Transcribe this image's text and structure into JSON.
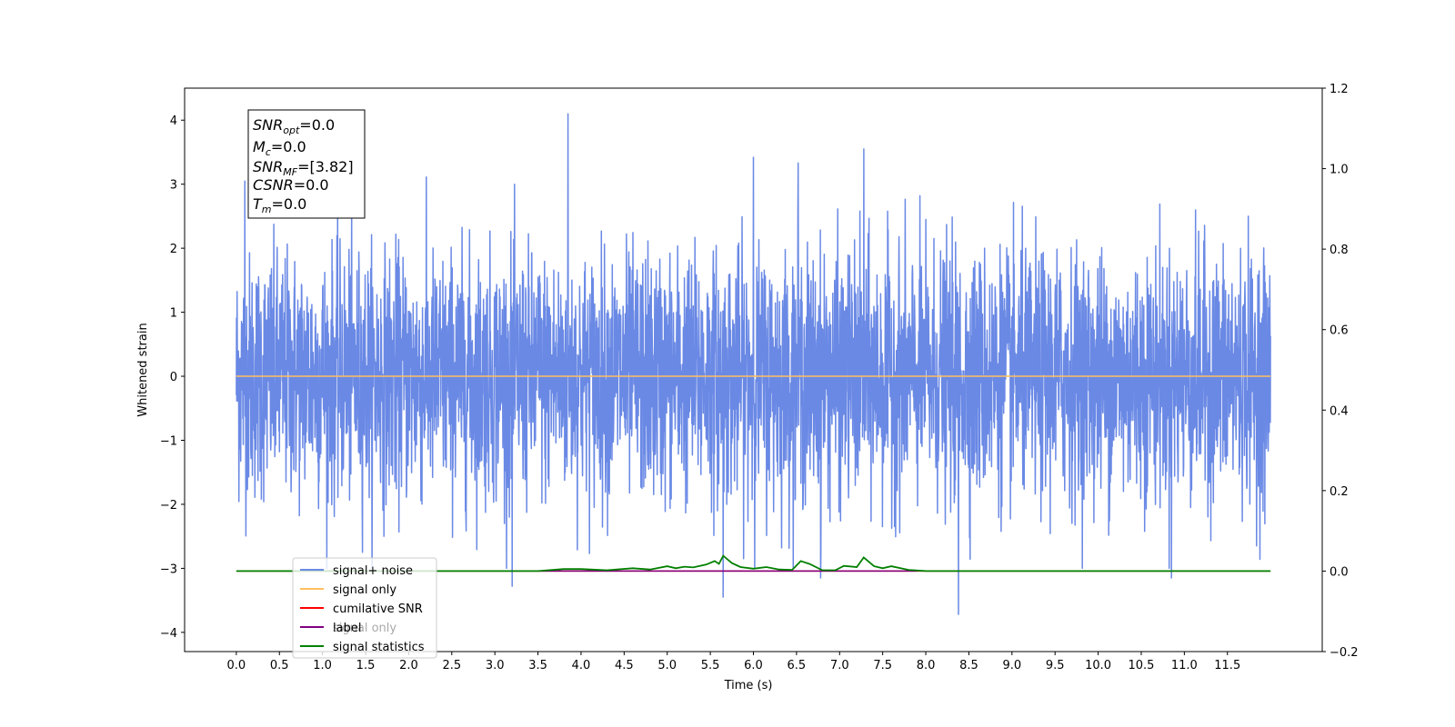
{
  "chart_data": {
    "type": "line",
    "xlabel": "Time (s)",
    "ylabel_left": "Whitened strain",
    "ylabel_right": "",
    "x_range": [
      -0.6,
      12.6
    ],
    "y_left_range": [
      -4.3,
      4.5
    ],
    "y_right_range": [
      -0.2,
      1.2
    ],
    "x_ticks": [
      "0.0",
      "0.5",
      "1.0",
      "1.5",
      "2.0",
      "2.5",
      "3.0",
      "3.5",
      "4.0",
      "4.5",
      "5.0",
      "5.5",
      "6.0",
      "6.5",
      "7.0",
      "7.5",
      "8.0",
      "8.5",
      "9.0",
      "9.5",
      "10.0",
      "10.5",
      "11.0",
      "11.5"
    ],
    "y_left_ticks": [
      "−4",
      "−3",
      "−2",
      "−1",
      "0",
      "1",
      "2",
      "3",
      "4"
    ],
    "y_right_ticks": [
      "−0.2",
      "0.0",
      "0.2",
      "0.4",
      "0.6",
      "0.8",
      "1.0",
      "1.2"
    ],
    "grid": false,
    "legend_position": "lower-left",
    "series": [
      {
        "name": "signal+ noise",
        "axis": "left",
        "color": "#6a89e5",
        "description_values": "whitened gaussian noise, roughly zero-mean with unit variance, extremes near +4.1 at 3.85 s and -3.7 at 8.4 s",
        "x_start": 0.0,
        "x_end": 12.0,
        "notable_peaks": [
          {
            "x": 3.85,
            "y": 4.1
          },
          {
            "x": 7.28,
            "y": 3.55
          },
          {
            "x": 6.0,
            "y": 3.42
          },
          {
            "x": 6.52,
            "y": 3.33
          },
          {
            "x": 0.1,
            "y": 3.05
          },
          {
            "x": 8.38,
            "y": -3.72
          },
          {
            "x": 5.65,
            "y": -3.45
          },
          {
            "x": 3.2,
            "y": -3.28
          },
          {
            "x": 10.85,
            "y": -3.15
          },
          {
            "x": 6.78,
            "y": -3.15
          }
        ]
      },
      {
        "name": "signal only",
        "axis": "left",
        "color": "#ffbf60",
        "x": [
          0.0,
          12.0
        ],
        "y": [
          0.0,
          0.0
        ]
      },
      {
        "name": "cumilative SNR",
        "axis": "right",
        "color": "#ff0000",
        "x": [
          0.0,
          12.0
        ],
        "y": [
          0.0,
          0.0
        ]
      },
      {
        "name": "label",
        "axis": "right",
        "color": "#800080",
        "x": [
          3.5,
          7.9
        ],
        "y": [
          0.0,
          0.0
        ]
      },
      {
        "name": "signal statistics",
        "axis": "right",
        "color": "#008000",
        "x": [
          0.0,
          3.5,
          3.8,
          4.0,
          4.3,
          4.6,
          4.8,
          5.0,
          5.1,
          5.2,
          5.3,
          5.45,
          5.55,
          5.6,
          5.65,
          5.75,
          5.85,
          6.0,
          6.15,
          6.3,
          6.45,
          6.55,
          6.65,
          6.8,
          6.95,
          7.05,
          7.2,
          7.28,
          7.4,
          7.5,
          7.6,
          7.8,
          8.0,
          12.0
        ],
        "y": [
          0.0,
          0.0,
          0.005,
          0.005,
          0.002,
          0.007,
          0.004,
          0.012,
          0.007,
          0.011,
          0.009,
          0.016,
          0.025,
          0.018,
          0.038,
          0.02,
          0.01,
          0.006,
          0.01,
          0.004,
          0.003,
          0.025,
          0.018,
          0.002,
          0.002,
          0.013,
          0.01,
          0.034,
          0.012,
          0.007,
          0.012,
          0.003,
          0.0,
          0.0
        ]
      }
    ],
    "legend": [
      "signal+ noise",
      "signal only",
      "cumilative SNR",
      "label",
      "signal statistics"
    ],
    "overlay_legend_text": "signal only"
  },
  "info_box": {
    "line1_main": "SNR",
    "line1_sub": "opt",
    "line1_value": "=0.0",
    "line2_main": "M",
    "line2_sub": "c",
    "line2_value": "=0.0",
    "line3_main": "SNR",
    "line3_sub": "MF",
    "line3_value": "=[3.82]",
    "line4_main": "CSNR",
    "line4_value": "=0.0",
    "line5_main": "T",
    "line5_sub": "m",
    "line5_value": "=0.0"
  }
}
